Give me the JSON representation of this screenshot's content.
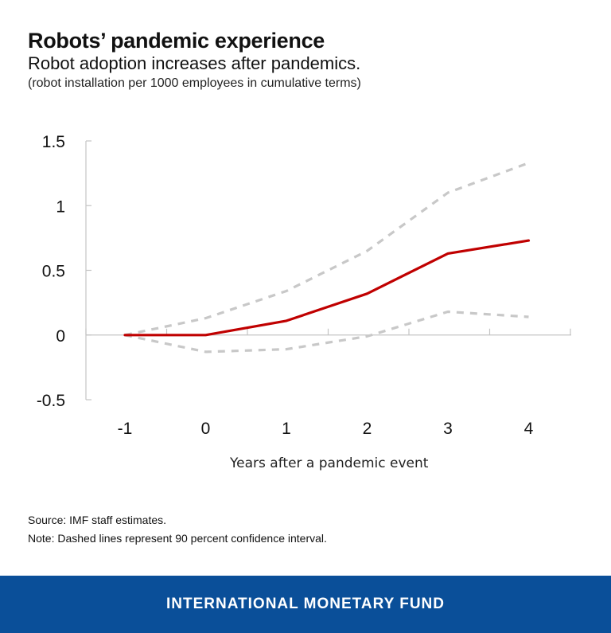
{
  "header": {
    "title": "Robots’ pandemic experience",
    "subtitle": "Robot adoption increases after pandemics.",
    "unit_note": "(robot installation per 1000 employees in cumulative terms)"
  },
  "chart_data": {
    "type": "line",
    "x": [
      -1,
      0,
      1,
      2,
      3,
      4
    ],
    "xlabel": "Years after a pandemic event",
    "ylabel": "",
    "ylim": [
      -0.5,
      1.5
    ],
    "yticks": [
      -0.5,
      0,
      0.5,
      1,
      1.5
    ],
    "ytick_labels": [
      "-0.5",
      "0",
      "0.5",
      "1",
      "1.5"
    ],
    "xtick_labels": [
      "-1",
      "0",
      "1",
      "2",
      "3",
      "4"
    ],
    "grid": false,
    "series": [
      {
        "role": "estimate",
        "values": [
          0,
          0,
          0.11,
          0.32,
          0.63,
          0.73
        ],
        "color": "#c00000",
        "style": "solid"
      },
      {
        "role": "upper-bound",
        "values": [
          0,
          0.13,
          0.34,
          0.65,
          1.1,
          1.33
        ],
        "color": "#c8c8c8",
        "style": "dashed"
      },
      {
        "role": "lower-bound",
        "values": [
          0,
          -0.13,
          -0.11,
          -0.01,
          0.18,
          0.14
        ],
        "color": "#c8c8c8",
        "style": "dashed"
      }
    ]
  },
  "footer": {
    "source": "Source: IMF staff estimates.",
    "note": "Note: Dashed lines represent 90 percent confidence interval.",
    "organization": "INTERNATIONAL MONETARY FUND"
  },
  "colors": {
    "brand": "#0a4f99",
    "accent": "#c00000",
    "interval": "#c8c8c8"
  }
}
